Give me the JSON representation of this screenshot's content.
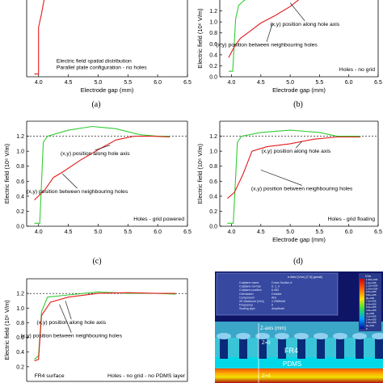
{
  "chart_data": [
    {
      "type": "line",
      "caption": "(a)",
      "xlabel": "Electrode gap (mm)",
      "ylabel": "",
      "xlim": [
        3.8,
        6.5
      ],
      "ylim": [
        0,
        1.4
      ],
      "xticks": [
        "4.0",
        "4.5",
        "5.0",
        "5.5",
        "6.0",
        "6.5"
      ],
      "yticks": [],
      "series": [
        {
          "color": "#e41a1c",
          "x": [
            3.93,
            4.0,
            4.0,
            4.05,
            4.1
          ],
          "y": [
            0.05,
            0.05,
            0.9,
            1.15,
            1.45
          ]
        }
      ],
      "notes": [
        "Electric field spatial distribution",
        "Parallel plate configuration - no holes"
      ],
      "ref_line": null
    },
    {
      "type": "line",
      "caption": "(b)",
      "xlabel": "Electrode gap (mm)",
      "ylabel": "Electric field (10⁶ V/m)",
      "xlim": [
        3.8,
        6.5
      ],
      "ylim": [
        0,
        1.4
      ],
      "xticks": [
        "4.0",
        "4.5",
        "5.0",
        "5.5",
        "6.0",
        "6.5"
      ],
      "yticks": [
        "0.0",
        "0.2",
        "0.4",
        "0.6",
        "0.8",
        "1.0",
        "1.2"
      ],
      "series": [
        {
          "color": "#33cc33",
          "x": [
            3.95,
            4.02,
            4.07,
            4.12,
            4.2,
            4.3
          ],
          "y": [
            0.1,
            0.1,
            1.05,
            1.3,
            1.38,
            1.45
          ]
        },
        {
          "color": "#e41a1c",
          "x": [
            3.95,
            4.05,
            4.15,
            4.3,
            4.5,
            4.75,
            5.0,
            5.2
          ],
          "y": [
            0.35,
            0.55,
            0.7,
            0.82,
            0.98,
            1.12,
            1.28,
            1.45
          ]
        }
      ],
      "annotations": [
        {
          "text": "(x,y) position along hole axis",
          "x": 5.25,
          "y": 0.93,
          "tx": 5.0,
          "ty": 1.35
        },
        {
          "text": "(x,y) position between neighbouring holes",
          "x": 4.6,
          "y": 0.55,
          "tx": 4.7,
          "ty": 0.98
        }
      ],
      "notes": [
        "Holes - no grid"
      ],
      "ref_line": null
    },
    {
      "type": "line",
      "caption": "(c)",
      "xlabel": "",
      "ylabel": "Electric field (10⁶ V/m)",
      "xlim": [
        3.8,
        6.5
      ],
      "ylim": [
        0,
        1.4
      ],
      "xticks": [
        "4.0",
        "4.5",
        "5.0",
        "5.5",
        "6.0",
        "6.5"
      ],
      "yticks": [
        "0.0",
        "0.2",
        "0.4",
        "0.6",
        "0.8",
        "1.0",
        "1.2"
      ],
      "series": [
        {
          "color": "#33cc33",
          "x": [
            3.93,
            4.02,
            4.08,
            4.15,
            4.5,
            4.9,
            5.3,
            5.7,
            6.0,
            6.2
          ],
          "y": [
            0.04,
            0.04,
            1.12,
            1.2,
            1.28,
            1.33,
            1.3,
            1.22,
            1.2,
            1.2
          ]
        },
        {
          "color": "#e41a1c",
          "x": [
            3.93,
            4.1,
            4.25,
            4.4,
            4.7,
            5.0,
            5.3,
            5.6,
            5.9,
            6.2
          ],
          "y": [
            0.35,
            0.48,
            0.65,
            0.72,
            0.88,
            1.02,
            1.15,
            1.2,
            1.2,
            1.19
          ]
        }
      ],
      "annotations": [
        {
          "text": "(x,y) position along hole axis",
          "x": 4.95,
          "y": 0.95,
          "tx": 5.2,
          "ty": 1.08
        },
        {
          "text": "(x,y) position between neighbouring holes",
          "x": 4.65,
          "y": 0.44,
          "tx": 4.4,
          "ty": 0.7
        }
      ],
      "notes": [
        "Holes - grid powered"
      ],
      "ref_line": 1.2
    },
    {
      "type": "line",
      "caption": "(d)",
      "xlabel": "Electrode gap (mm)",
      "ylabel": "Electric field (10⁶ V/m)",
      "xlim": [
        3.8,
        6.5
      ],
      "ylim": [
        0,
        1.4
      ],
      "xticks": [
        "4.0",
        "4.5",
        "5.0",
        "5.5",
        "6.0",
        "6.5"
      ],
      "yticks": [
        "0.0",
        "0.2",
        "0.4",
        "0.6",
        "0.8",
        "1.0",
        "1.2"
      ],
      "series": [
        {
          "color": "#33cc33",
          "x": [
            3.93,
            4.03,
            4.1,
            4.17,
            4.5,
            5.0,
            5.5,
            5.8,
            6.0,
            6.2
          ],
          "y": [
            0.04,
            0.04,
            1.12,
            1.2,
            1.25,
            1.28,
            1.25,
            1.2,
            1.2,
            1.2
          ]
        },
        {
          "color": "#e41a1c",
          "x": [
            3.93,
            4.05,
            4.2,
            4.35,
            4.6,
            5.0,
            5.4,
            5.8,
            6.2
          ],
          "y": [
            0.37,
            0.45,
            0.7,
            1.0,
            1.06,
            1.1,
            1.16,
            1.19,
            1.19
          ]
        }
      ],
      "annotations": [
        {
          "text": "(x,y) position along hole axis",
          "x": 5.1,
          "y": 0.98,
          "tx": 5.2,
          "ty": 1.13
        },
        {
          "text": "(x,y) position between neighbouring holes",
          "x": 5.2,
          "y": 0.48,
          "tx": 4.5,
          "ty": 0.75
        }
      ],
      "notes": [
        "Holes - grid floating"
      ],
      "ref_line": 1.2
    },
    {
      "type": "line",
      "caption": "",
      "xlabel": "",
      "ylabel": "Electric field (10⁶ V/m)",
      "xlim": [
        3.8,
        6.5
      ],
      "ylim": [
        0,
        1.4
      ],
      "xticks": [],
      "yticks": [
        "0.2",
        "0.4",
        "0.6",
        "0.8",
        "1.0",
        "1.2"
      ],
      "series": [
        {
          "color": "#33cc33",
          "x": [
            3.93,
            4.0,
            4.05,
            4.15,
            4.5,
            5.0,
            5.5,
            6.0,
            6.3
          ],
          "y": [
            0.3,
            0.35,
            0.95,
            1.15,
            1.18,
            1.22,
            1.2,
            1.2,
            1.19
          ]
        },
        {
          "color": "#e41a1c",
          "x": [
            3.93,
            4.0,
            4.05,
            4.2,
            4.5,
            5.0,
            5.5,
            6.0,
            6.3
          ],
          "y": [
            0.28,
            0.3,
            0.9,
            1.08,
            1.15,
            1.2,
            1.21,
            1.2,
            1.2
          ]
        }
      ],
      "annotations": [
        {
          "text": "(x,y) position along hole axis",
          "x": 4.55,
          "y": 0.78,
          "tx": 4.45,
          "ty": 1.1
        },
        {
          "text": "(x,y) position between neighbouring holes",
          "x": 4.55,
          "y": 0.6,
          "tx": 4.35,
          "ty": 1.05
        }
      ],
      "notes": [
        "FR4 surface",
        "Holes - no grid - no PDMS layer"
      ],
      "ref_line": 1.2
    }
  ],
  "sim": {
    "title": "e.field (V/m) [7.5] (peak)",
    "info": [
      [
        "Cutplane name",
        "Cross Section A"
      ],
      [
        "Cutplane normal",
        "0, 1, 0"
      ],
      [
        "Cutplane position",
        "6.463"
      ],
      [
        "Orientation",
        "Outside"
      ],
      [
        "Component",
        "Abs"
      ],
      [
        "2D Maximum [V/m]",
        "1.29854e6"
      ],
      [
        "Frequency",
        "0"
      ],
      [
        "Scaling type",
        "Amplitude"
      ]
    ],
    "unit": "V/m",
    "scale": [
      "1.29e+006",
      "1.2e+006",
      "1.12e+006",
      "1.04e+006",
      "9.6e+005",
      "8.8e+005",
      "8e+005",
      "7.2e+005",
      "6.4e+005",
      "5.6e+005",
      "4.8e+005",
      "4e+005",
      "3.2e+005",
      "2.4e+005",
      "1.6e+005",
      "8e+004",
      "0"
    ],
    "z_axis": "Z-axis (mm)",
    "z0": "Z=0",
    "z4": "Z=4",
    "fr4": "FR4",
    "pdms": "PDMS"
  }
}
